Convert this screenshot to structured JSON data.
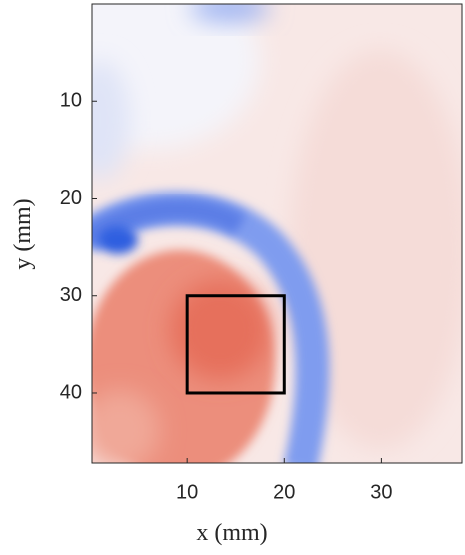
{
  "chart_data": {
    "type": "heatmap",
    "xlabel": "x (mm)",
    "ylabel": "y (mm)",
    "xlim": [
      0.2,
      38.3
    ],
    "ylim": [
      0,
      47.2
    ],
    "xticks": [
      10,
      20,
      30
    ],
    "yticks": [
      10,
      20,
      30,
      40
    ],
    "box": {
      "x": [
        10,
        20
      ],
      "y": [
        30,
        40
      ],
      "color": "#000000"
    }
  }
}
